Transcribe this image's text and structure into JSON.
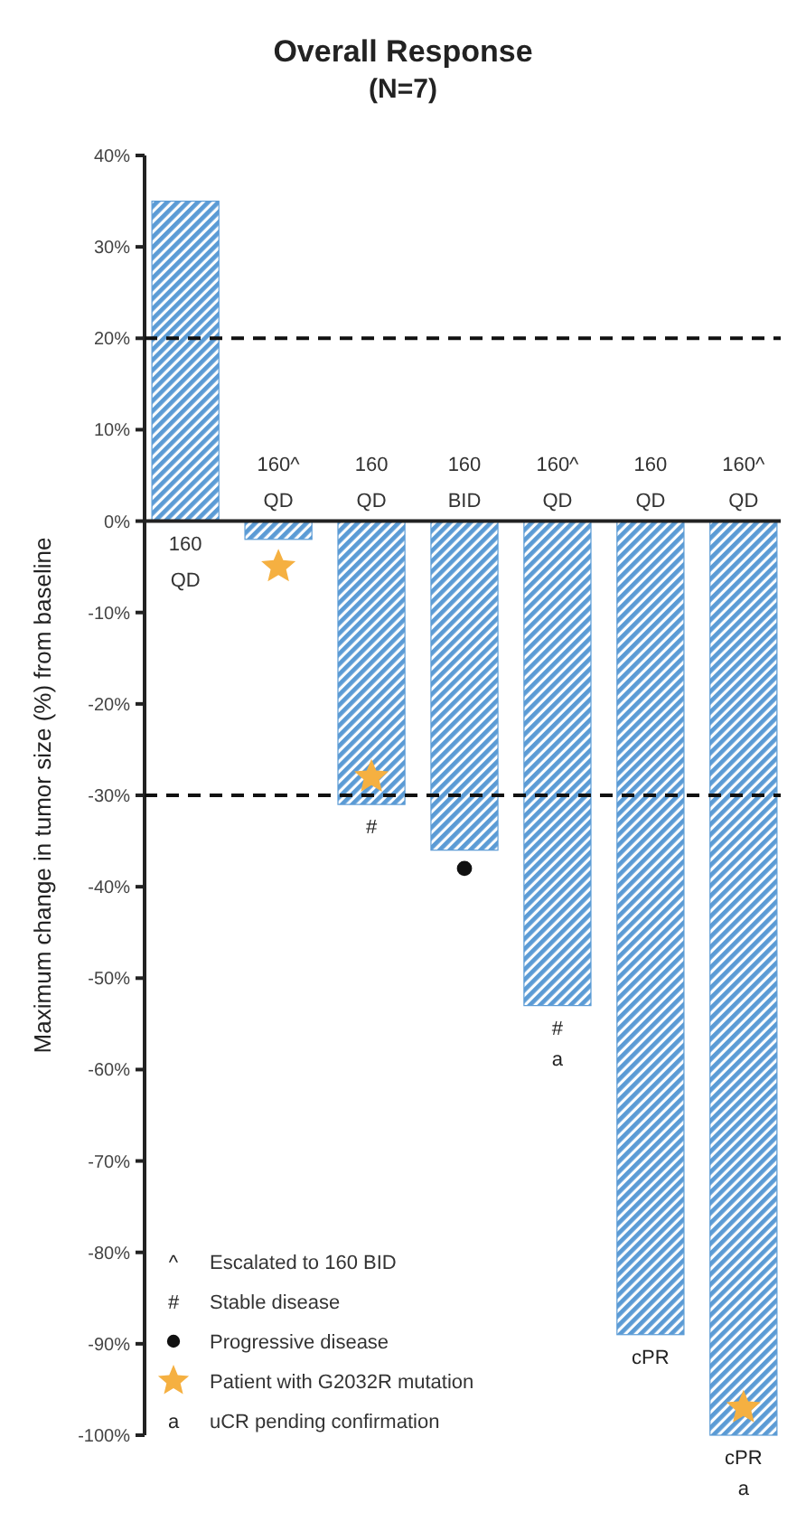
{
  "chart_data": {
    "type": "bar",
    "title": "Overall Response",
    "subtitle": "(N=7)",
    "ylabel": "Maximum change in tumor size (%) from baseline",
    "categories": [
      "160 QD",
      "160^ QD",
      "160 QD",
      "160 BID",
      "160^ QD",
      "160 QD",
      "160^ QD"
    ],
    "series": [
      {
        "color": "#5b9bd5",
        "values": [
          35,
          -2,
          -31,
          -36,
          -53,
          -89,
          -100
        ],
        "value_labels": [
          null,
          null,
          "#",
          null,
          "# a",
          "cPR",
          "cPR a"
        ]
      },
      {
        "type": "scatter",
        "name": "Progressive disease",
        "color": "#111111",
        "marker": "circle",
        "values": [
          null,
          null,
          null,
          -38,
          null,
          null,
          null
        ]
      },
      {
        "type": "scatter",
        "name": "Patient with G2032R mutation",
        "color": "#f5b041",
        "marker": "star",
        "values": [
          null,
          -5,
          -28,
          null,
          null,
          null,
          -97
        ]
      }
    ],
    "ylim": [
      -100,
      40
    ],
    "yticks": [
      {
        "value": 40,
        "label": "40%"
      },
      {
        "value": 30,
        "label": "30%"
      },
      {
        "value": 20,
        "label": "20%"
      },
      {
        "value": 10,
        "label": "10%"
      },
      {
        "value": 0,
        "label": "0%"
      },
      {
        "value": -10,
        "label": "-10%"
      },
      {
        "value": -20,
        "label": "-20%"
      },
      {
        "value": -30,
        "label": "-30%"
      },
      {
        "value": -40,
        "label": "-40%"
      },
      {
        "value": -50,
        "label": "-50%"
      },
      {
        "value": -60,
        "label": "-60%"
      },
      {
        "value": -70,
        "label": "-70%"
      },
      {
        "value": -80,
        "label": "-80%"
      },
      {
        "value": -90,
        "label": "-90%"
      },
      {
        "value": -100,
        "label": "-100%"
      }
    ],
    "ref_lines": [
      {
        "axis": "y",
        "value": 20,
        "line_style": "dashed"
      },
      {
        "axis": "y",
        "value": -30,
        "line_style": "dashed"
      }
    ],
    "annotations": [
      "^ Escalated to 160 BID",
      "# Stable disease",
      "a uCR pending confirmation"
    ],
    "legend": "bottom left",
    "grid": false
  }
}
